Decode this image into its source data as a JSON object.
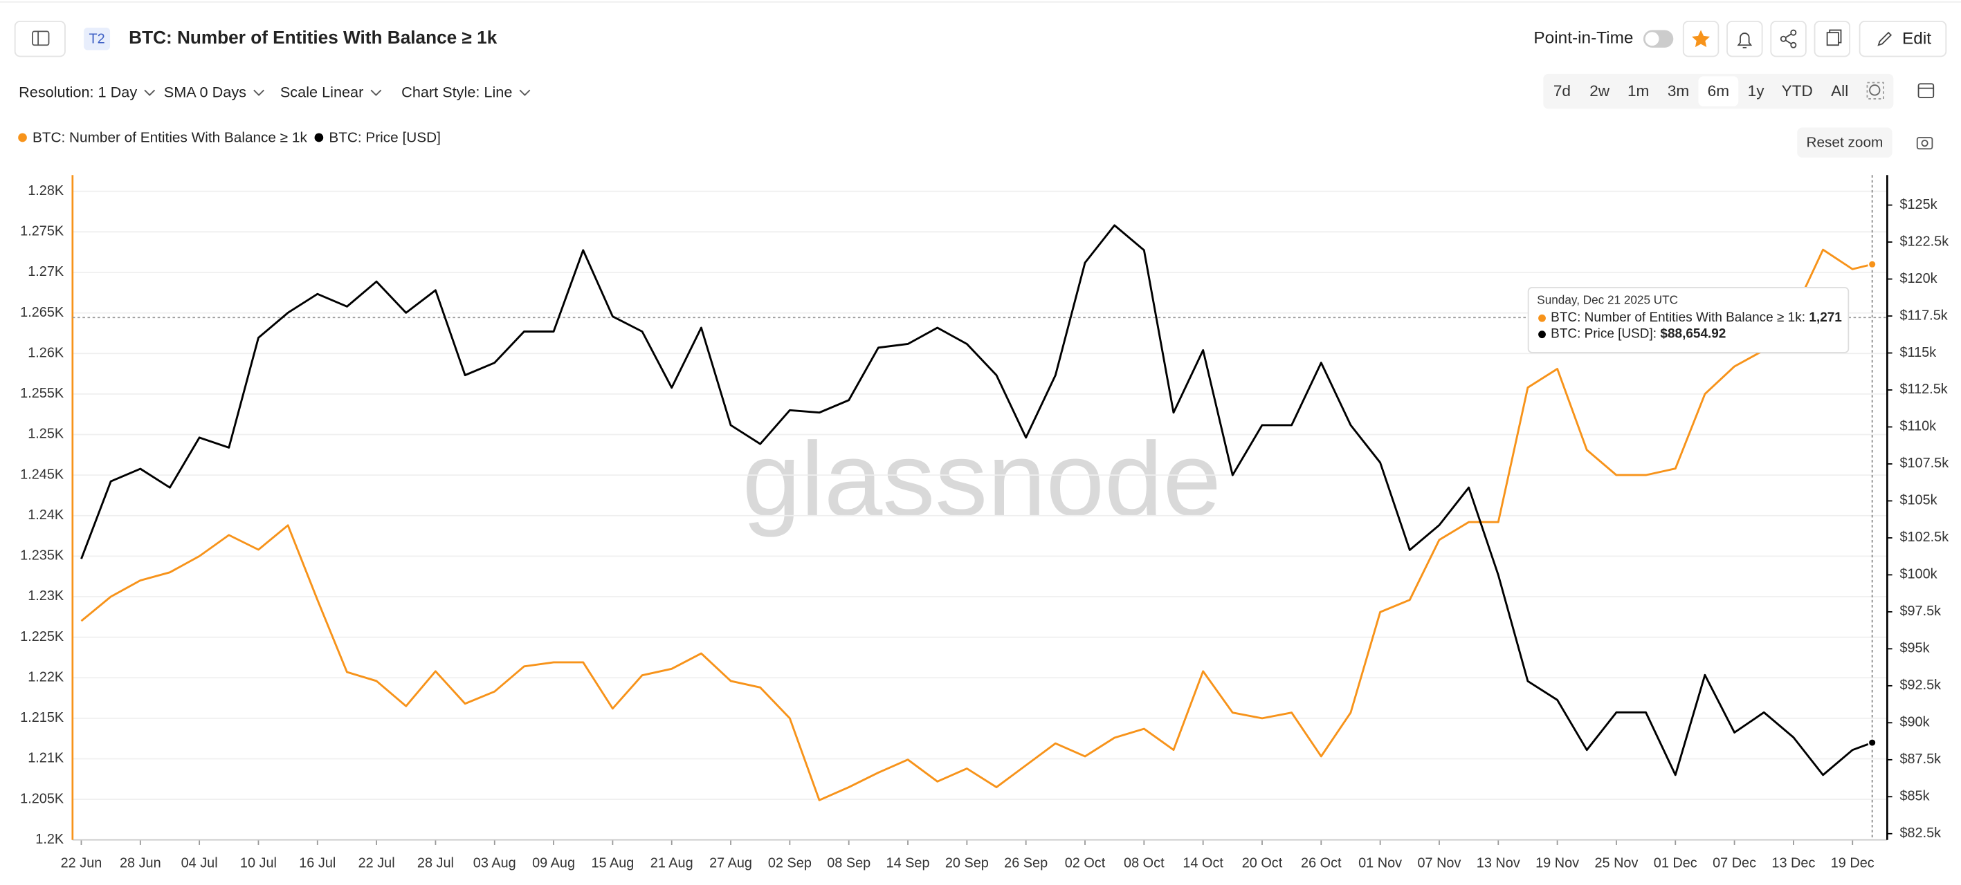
{
  "ui": {
    "badge": "T2",
    "title": "BTC: Number of Entities With Balance ≥ 1k",
    "point_in_time": "Point-in-Time",
    "edit": "Edit",
    "controls": [
      "Resolution: 1 Day",
      "SMA 0 Days",
      "Scale Linear",
      "Chart Style: Line"
    ],
    "ranges": [
      "7d",
      "2w",
      "1m",
      "3m",
      "6m",
      "1y",
      "YTD",
      "All"
    ],
    "active_range": "6m",
    "reset_zoom": "Reset zoom",
    "watermark": "glassnode"
  },
  "chart_data": {
    "type": "line",
    "x": [
      "2025-06-22",
      "2025-06-25",
      "2025-06-28",
      "2025-07-01",
      "2025-07-04",
      "2025-07-07",
      "2025-07-10",
      "2025-07-13",
      "2025-07-16",
      "2025-07-19",
      "2025-07-22",
      "2025-07-25",
      "2025-07-28",
      "2025-07-31",
      "2025-08-03",
      "2025-08-06",
      "2025-08-09",
      "2025-08-12",
      "2025-08-15",
      "2025-08-18",
      "2025-08-21",
      "2025-08-24",
      "2025-08-27",
      "2025-08-30",
      "2025-09-02",
      "2025-09-05",
      "2025-09-08",
      "2025-09-11",
      "2025-09-14",
      "2025-09-17",
      "2025-09-20",
      "2025-09-23",
      "2025-09-26",
      "2025-09-29",
      "2025-10-02",
      "2025-10-05",
      "2025-10-08",
      "2025-10-11",
      "2025-10-14",
      "2025-10-17",
      "2025-10-20",
      "2025-10-23",
      "2025-10-26",
      "2025-10-29",
      "2025-11-01",
      "2025-11-04",
      "2025-11-07",
      "2025-11-10",
      "2025-11-13",
      "2025-11-16",
      "2025-11-19",
      "2025-11-22",
      "2025-11-25",
      "2025-11-28",
      "2025-12-01",
      "2025-12-04",
      "2025-12-07",
      "2025-12-10",
      "2025-12-13",
      "2025-12-16",
      "2025-12-19",
      "2025-12-21"
    ],
    "series": [
      {
        "name": "BTC: Number of Entities With Balance ≥ 1k",
        "color": "#f7931a",
        "values": [
          1227,
          1230,
          1232,
          1233,
          1235,
          1237.6,
          1235.8,
          1238.8,
          1229.6,
          1220.7,
          1219.6,
          1216.5,
          1220.8,
          1216.8,
          1218.3,
          1221.4,
          1221.9,
          1221.9,
          1216.2,
          1220.3,
          1221.1,
          1223,
          1219.6,
          1218.8,
          1215,
          1204.9,
          1206.5,
          1208.3,
          1209.9,
          1207.2,
          1208.8,
          1206.5,
          1209.2,
          1211.9,
          1210.3,
          1212.6,
          1213.7,
          1211.1,
          1220.8,
          1215.7,
          1215,
          1215.7,
          1210.3,
          1215.7,
          1228.1,
          1229.6,
          1237,
          1239.2,
          1239.2,
          1255.8,
          1258.1,
          1248.1,
          1245,
          1245,
          1245.8,
          1255,
          1258.4,
          1260.4,
          1265,
          1272.8,
          1270.4,
          1271
        ]
      },
      {
        "name": "BTC: Price [USD]",
        "color": "#000000",
        "axis": "y2",
        "values": [
          101080,
          106320,
          107170,
          105900,
          109280,
          108600,
          116030,
          117720,
          118990,
          118140,
          119830,
          117720,
          119240,
          113500,
          114340,
          116450,
          116450,
          121950,
          117470,
          116450,
          112650,
          116710,
          110120,
          108850,
          111130,
          110970,
          111810,
          115360,
          115610,
          116710,
          115610,
          113500,
          109280,
          113500,
          121100,
          123630,
          121950,
          110970,
          115190,
          106740,
          110120,
          110120,
          114340,
          110120,
          107590,
          101680,
          103360,
          105900,
          99990,
          92810,
          91540,
          88160,
          90700,
          90700,
          86470,
          93230,
          89340,
          90700,
          89010,
          86470,
          88160,
          88654.92
        ]
      }
    ],
    "xlim": [
      "2025-06-22",
      "2025-12-21"
    ],
    "xticks": [
      {
        "value": "2025-06-22",
        "label": "22 Jun"
      },
      {
        "value": "2025-06-28",
        "label": "28 Jun"
      },
      {
        "value": "2025-07-04",
        "label": "04 Jul"
      },
      {
        "value": "2025-07-10",
        "label": "10 Jul"
      },
      {
        "value": "2025-07-16",
        "label": "16 Jul"
      },
      {
        "value": "2025-07-22",
        "label": "22 Jul"
      },
      {
        "value": "2025-07-28",
        "label": "28 Jul"
      },
      {
        "value": "2025-08-03",
        "label": "03 Aug"
      },
      {
        "value": "2025-08-09",
        "label": "09 Aug"
      },
      {
        "value": "2025-08-15",
        "label": "15 Aug"
      },
      {
        "value": "2025-08-21",
        "label": "21 Aug"
      },
      {
        "value": "2025-08-27",
        "label": "27 Aug"
      },
      {
        "value": "2025-09-02",
        "label": "02 Sep"
      },
      {
        "value": "2025-09-08",
        "label": "08 Sep"
      },
      {
        "value": "2025-09-14",
        "label": "14 Sep"
      },
      {
        "value": "2025-09-20",
        "label": "20 Sep"
      },
      {
        "value": "2025-09-26",
        "label": "26 Sep"
      },
      {
        "value": "2025-10-02",
        "label": "02 Oct"
      },
      {
        "value": "2025-10-08",
        "label": "08 Oct"
      },
      {
        "value": "2025-10-14",
        "label": "14 Oct"
      },
      {
        "value": "2025-10-20",
        "label": "20 Oct"
      },
      {
        "value": "2025-10-26",
        "label": "26 Oct"
      },
      {
        "value": "2025-11-01",
        "label": "01 Nov"
      },
      {
        "value": "2025-11-07",
        "label": "07 Nov"
      },
      {
        "value": "2025-11-13",
        "label": "13 Nov"
      },
      {
        "value": "2025-11-19",
        "label": "19 Nov"
      },
      {
        "value": "2025-11-25",
        "label": "25 Nov"
      },
      {
        "value": "2025-12-01",
        "label": "01 Dec"
      },
      {
        "value": "2025-12-07",
        "label": "07 Dec"
      },
      {
        "value": "2025-12-13",
        "label": "13 Dec"
      },
      {
        "value": "2025-12-19",
        "label": "19 Dec"
      }
    ],
    "ylim": [
      1200,
      1280
    ],
    "yticks": [
      {
        "value": 1200,
        "label": "1.2K"
      },
      {
        "value": 1205,
        "label": "1.205K"
      },
      {
        "value": 1210,
        "label": "1.21K"
      },
      {
        "value": 1215,
        "label": "1.215K"
      },
      {
        "value": 1220,
        "label": "1.22K"
      },
      {
        "value": 1225,
        "label": "1.225K"
      },
      {
        "value": 1230,
        "label": "1.23K"
      },
      {
        "value": 1235,
        "label": "1.235K"
      },
      {
        "value": 1240,
        "label": "1.24K"
      },
      {
        "value": 1245,
        "label": "1.245K"
      },
      {
        "value": 1250,
        "label": "1.25K"
      },
      {
        "value": 1255,
        "label": "1.255K"
      },
      {
        "value": 1260,
        "label": "1.26K"
      },
      {
        "value": 1265,
        "label": "1.265K"
      },
      {
        "value": 1270,
        "label": "1.27K"
      },
      {
        "value": 1275,
        "label": "1.275K"
      },
      {
        "value": 1280,
        "label": "1.28K"
      }
    ],
    "y2lim": [
      82080,
      125930
    ],
    "y2ticks": [
      {
        "value": 82500,
        "label": "$82.5k"
      },
      {
        "value": 85000,
        "label": "$85k"
      },
      {
        "value": 87500,
        "label": "$87.5k"
      },
      {
        "value": 90000,
        "label": "$90k"
      },
      {
        "value": 92500,
        "label": "$92.5k"
      },
      {
        "value": 95000,
        "label": "$95k"
      },
      {
        "value": 97500,
        "label": "$97.5k"
      },
      {
        "value": 100000,
        "label": "$100k"
      },
      {
        "value": 102500,
        "label": "$102.5k"
      },
      {
        "value": 105000,
        "label": "$105k"
      },
      {
        "value": 107500,
        "label": "$107.5k"
      },
      {
        "value": 110000,
        "label": "$110k"
      },
      {
        "value": 112500,
        "label": "$112.5k"
      },
      {
        "value": 115000,
        "label": "$115k"
      },
      {
        "value": 117500,
        "label": "$117.5k"
      },
      {
        "value": 120000,
        "label": "$120k"
      },
      {
        "value": 122500,
        "label": "$122.5k"
      },
      {
        "value": 125000,
        "label": "$125k"
      }
    ],
    "grid": true,
    "legend": "top-left",
    "tooltip": {
      "date": "Sunday, Dec 21 2025 UTC",
      "labels": [
        "BTC: Number of Entities With Balance ≥ 1k:",
        "BTC: Price [USD]:"
      ],
      "value_labels": [
        "1,271",
        "$88,654.92"
      ]
    }
  }
}
